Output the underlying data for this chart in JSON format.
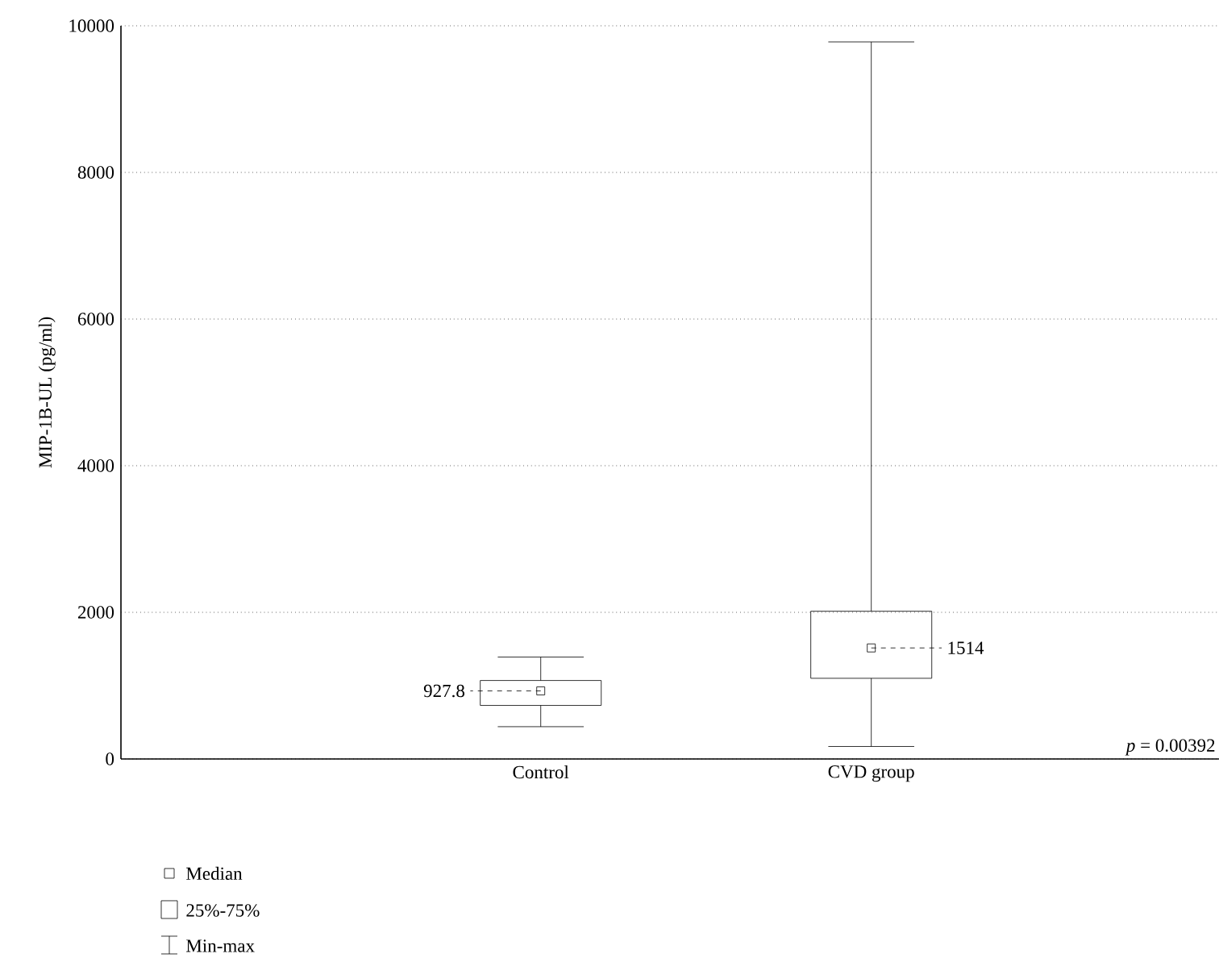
{
  "chart_data": {
    "type": "box",
    "ylabel": "MIP-1B-UL (pg/ml)",
    "categories": [
      "Control",
      "CVD group"
    ],
    "boxes": [
      {
        "low": 440,
        "q1": 730,
        "median": 927.8,
        "q3": 1070,
        "high": 1390
      },
      {
        "low": 170,
        "q1": 1100,
        "median": 1514,
        "q3": 2015,
        "high": 9780
      }
    ],
    "color": "#000000",
    "ylim": [
      0,
      10000
    ],
    "yticks": [
      0,
      2000,
      4000,
      6000,
      8000,
      10000
    ],
    "grid": "y",
    "marker": "square",
    "annotations": [
      "927.8",
      "1514",
      "*p* = 0.00392",
      "Median",
      "25%-75%",
      "Min-max"
    ]
  }
}
